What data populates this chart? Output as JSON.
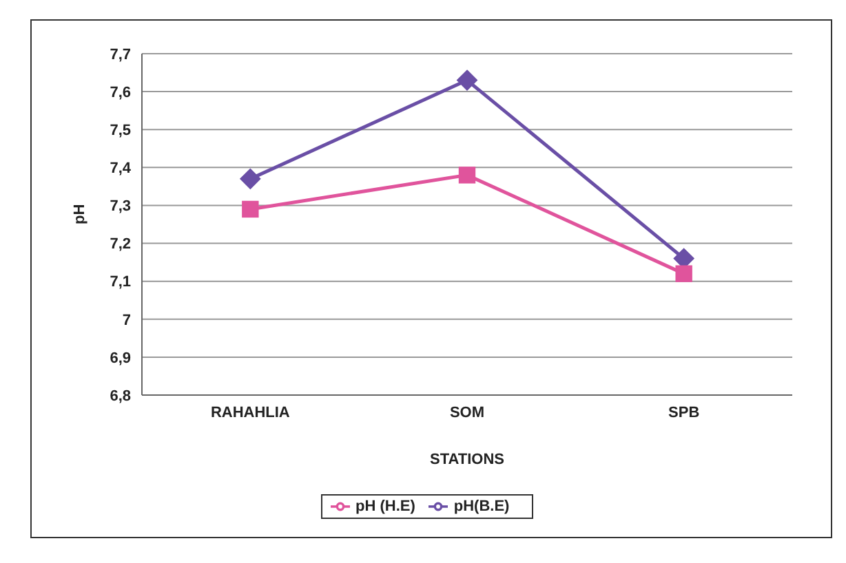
{
  "chart_data": {
    "type": "line",
    "xlabel": "STATIONS",
    "ylabel": "pH",
    "categories": [
      "RAHAHLIA",
      "SOM",
      "SPB"
    ],
    "series": [
      {
        "name": "pH(B.E)",
        "color": "#6a4fa6",
        "marker": "diamond",
        "values": [
          7.37,
          7.63,
          7.16
        ]
      },
      {
        "name": "pH (H.E)",
        "color": "#e0549c",
        "marker": "square",
        "values": [
          7.29,
          7.38,
          7.12
        ]
      }
    ],
    "ylim": [
      6.8,
      7.7
    ],
    "yticks": [
      {
        "value": 6.8,
        "label": "6,8"
      },
      {
        "value": 6.9,
        "label": "6,9"
      },
      {
        "value": 7,
        "label": "7"
      },
      {
        "value": 7.1,
        "label": "7,1"
      },
      {
        "value": 7.2,
        "label": "7,2"
      },
      {
        "value": 7.3,
        "label": "7,3"
      },
      {
        "value": 7.4,
        "label": "7,4"
      },
      {
        "value": 7.5,
        "label": "7,5"
      },
      {
        "value": 7.6,
        "label": "7,6"
      },
      {
        "value": 7.7,
        "label": "7,7"
      }
    ],
    "grid": "y",
    "legend": "bottom"
  }
}
